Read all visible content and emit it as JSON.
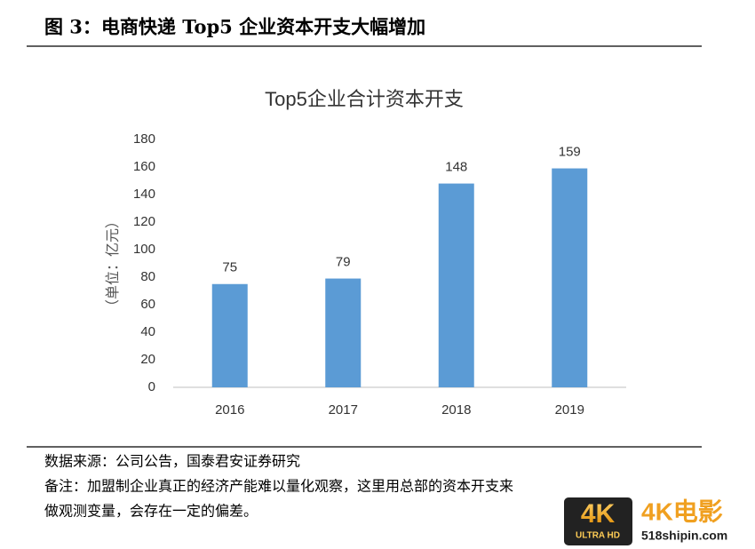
{
  "header": {
    "title": "图 3：电商快递 Top5 企业资本开支大幅增加"
  },
  "chart_data": {
    "type": "bar",
    "title": "Top5企业合计资本开支",
    "y_label": "（单位：亿元）",
    "categories": [
      "2016",
      "2017",
      "2018",
      "2019"
    ],
    "values": [
      75,
      79,
      148,
      159
    ],
    "color": "#5b9bd5",
    "ylim": [
      0,
      180
    ],
    "yticks": [
      0,
      20,
      40,
      60,
      80,
      100,
      120,
      140,
      160,
      180
    ],
    "grid": false,
    "data_labels": true
  },
  "footer": {
    "source": "数据来源：公司公告，国泰君安证券研究",
    "note_lines": [
      "备注：加盟制企业真正的经济产能难以量化观察，这里用总部的资本开支来",
      "做观测变量，会存在一定的偏差。"
    ]
  },
  "watermark": {
    "badge": "4K",
    "badge_sub": "ULTRA HD",
    "brand": "4K电影",
    "site": "518shipin.com"
  }
}
